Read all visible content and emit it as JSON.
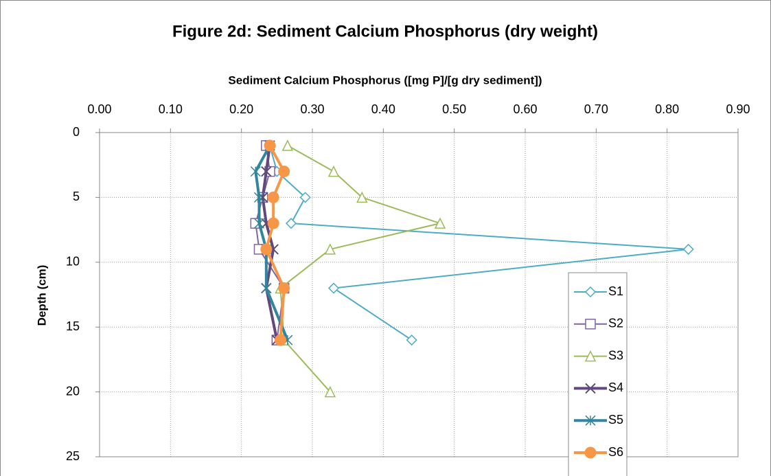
{
  "chart_data": {
    "type": "line",
    "title": "Figure 2d: Sediment Calcium Phosphorus (dry weight)",
    "x_label": "Sediment Calcium Phosphorus ([mg P]/[g dry sediment])",
    "y_label": "Depth (cm)",
    "xlim": [
      0,
      0.9
    ],
    "xticks": [
      {
        "value": 0,
        "label": "0.00"
      },
      {
        "value": 0.1,
        "label": "0.10"
      },
      {
        "value": 0.2,
        "label": "0.20"
      },
      {
        "value": 0.3,
        "label": "0.30"
      },
      {
        "value": 0.4,
        "label": "0.40"
      },
      {
        "value": 0.5,
        "label": "0.50"
      },
      {
        "value": 0.6,
        "label": "0.60"
      },
      {
        "value": 0.7,
        "label": "0.70"
      },
      {
        "value": 0.8,
        "label": "0.80"
      },
      {
        "value": 0.9,
        "label": "0.90"
      }
    ],
    "ylim": [
      0,
      25
    ],
    "yticks": [
      0,
      5,
      10,
      15,
      20,
      25
    ],
    "y_inverted": true,
    "grid": true,
    "series": [
      {
        "name": "S1",
        "color": "#4bacc6",
        "marker": "diamond",
        "depth": [
          1,
          3,
          5,
          7,
          9,
          12,
          16
        ],
        "values": [
          0.24,
          0.25,
          0.29,
          0.27,
          0.83,
          0.33,
          0.44
        ]
      },
      {
        "name": "S2",
        "color": "#8064a2",
        "marker": "square",
        "depth": [
          1,
          3,
          5,
          7,
          9,
          12,
          16
        ],
        "values": [
          0.235,
          0.24,
          0.23,
          0.22,
          0.225,
          0.26,
          0.25
        ]
      },
      {
        "name": "S3",
        "color": "#9bbb59",
        "marker": "triangle",
        "depth": [
          1,
          3,
          5,
          7,
          9,
          12,
          16,
          20
        ],
        "values": [
          0.265,
          0.33,
          0.37,
          0.48,
          0.325,
          0.255,
          0.26,
          0.325
        ]
      },
      {
        "name": "S4",
        "color": "#604a7b",
        "marker": "x",
        "depth": [
          1,
          3,
          5,
          7,
          9,
          12,
          16
        ],
        "values": [
          0.24,
          0.235,
          0.23,
          0.235,
          0.245,
          0.235,
          0.25
        ]
      },
      {
        "name": "S5",
        "color": "#31859c",
        "marker": "star",
        "depth": [
          1,
          3,
          5,
          7,
          9,
          12,
          16
        ],
        "values": [
          0.24,
          0.22,
          0.225,
          0.225,
          0.235,
          0.235,
          0.265
        ]
      },
      {
        "name": "S6",
        "color": "#f79646",
        "marker": "circle",
        "depth": [
          1,
          3,
          5,
          7,
          9,
          12,
          16
        ],
        "values": [
          0.24,
          0.26,
          0.245,
          0.245,
          0.235,
          0.26,
          0.255
        ]
      }
    ]
  }
}
